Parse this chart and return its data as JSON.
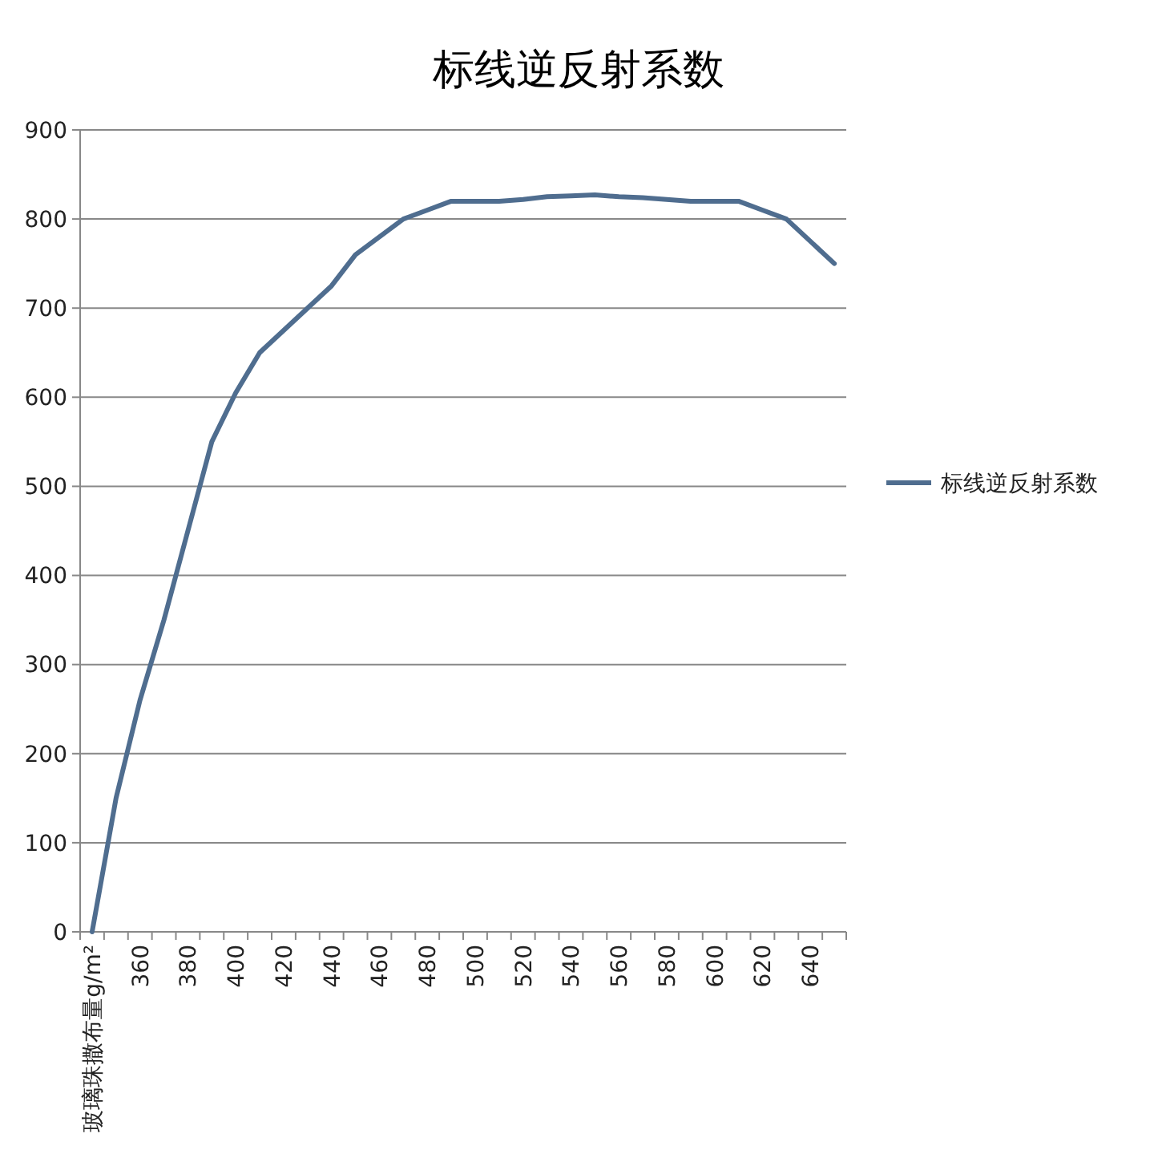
{
  "chart_data": {
    "type": "line",
    "title": "标线逆反射系数",
    "categories": [
      "玻璃珠撒布量g/m²",
      null,
      "360",
      null,
      "380",
      null,
      "400",
      null,
      "420",
      null,
      "440",
      null,
      "460",
      null,
      "480",
      null,
      "500",
      null,
      "520",
      null,
      "540",
      null,
      "560",
      null,
      "580",
      null,
      "600",
      null,
      "620",
      null,
      "640",
      null
    ],
    "series": [
      {
        "name": "标线逆反射系数",
        "color": "#4f6d8f",
        "values": [
          0,
          150,
          260,
          350,
          450,
          550,
          605,
          650,
          675,
          700,
          725,
          760,
          780,
          800,
          810,
          820,
          820,
          820,
          822,
          825,
          826,
          827,
          825,
          824,
          822,
          820,
          820,
          820,
          810,
          800,
          775,
          750
        ]
      }
    ],
    "ylim": [
      0,
      900
    ],
    "yticks": [
      0,
      100,
      200,
      300,
      400,
      500,
      600,
      700,
      800,
      900
    ],
    "grid": "y",
    "legend": "right",
    "marker": "none",
    "line_style": "solid"
  }
}
